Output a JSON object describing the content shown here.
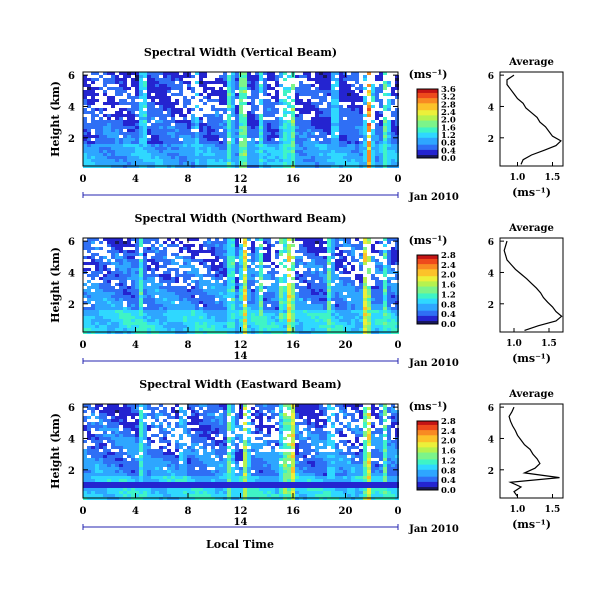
{
  "figure": {
    "xlabel": "Local Time",
    "date_label": "Jan 2010",
    "x_ticks": [
      "0",
      "4",
      "8",
      "12",
      "16",
      "20",
      "0"
    ],
    "day_marker": "14",
    "y_label": "Height (km)",
    "y_ticks": [
      "6",
      "4",
      "2"
    ],
    "units_label": "(ms⁻¹)",
    "profile_title": "Average",
    "colormap": [
      "#18185a",
      "#2424d0",
      "#2f6ff5",
      "#2ea6ff",
      "#2fd8ff",
      "#3ff4c6",
      "#7cf48a",
      "#b6f24f",
      "#ecf03a",
      "#fcc22a",
      "#f88a23",
      "#ee4a1c",
      "#c41515"
    ]
  },
  "chart_data": [
    {
      "type": "heatmap",
      "title": "Spectral Width (Vertical Beam)",
      "xlabel": "Local Time",
      "ylabel": "Height (km)",
      "xlim": [
        0,
        24
      ],
      "ylim": [
        0.2,
        6.2
      ],
      "colorbar": {
        "ticks": [
          "3.6",
          "3.2",
          "2.8",
          "2.4",
          "2.0",
          "1.6",
          "1.2",
          "0.8",
          "0.4",
          "0.0"
        ],
        "max": 3.6
      },
      "bursts": [
        {
          "time": 4.6,
          "value": 1.9
        },
        {
          "time": 8.6,
          "value": 1.6
        },
        {
          "time": 11.2,
          "value": 2.0
        },
        {
          "time": 12.2,
          "value": 2.8
        },
        {
          "time": 13.6,
          "value": 1.6
        },
        {
          "time": 15.3,
          "value": 2.1
        },
        {
          "time": 15.9,
          "value": 2.6
        },
        {
          "time": 19.2,
          "value": 1.8
        },
        {
          "time": 21.8,
          "value": 3.4
        },
        {
          "time": 23.1,
          "value": 2.2
        }
      ],
      "profile": {
        "title": "Average",
        "xlabel": "(ms⁻¹)",
        "xlim": [
          0.75,
          1.65
        ],
        "x_ticks": [
          "1.0",
          "1.5"
        ],
        "heights": [
          0.3,
          0.6,
          0.9,
          1.2,
          1.5,
          1.8,
          2.1,
          2.4,
          2.7,
          3.0,
          3.3,
          3.6,
          3.9,
          4.2,
          4.5,
          4.8,
          5.1,
          5.4,
          5.7,
          6.0
        ],
        "values": [
          1.05,
          1.08,
          1.2,
          1.38,
          1.55,
          1.62,
          1.5,
          1.45,
          1.4,
          1.32,
          1.28,
          1.2,
          1.12,
          1.08,
          1.0,
          0.95,
          0.9,
          0.85,
          0.85,
          0.95
        ]
      }
    },
    {
      "type": "heatmap",
      "title": "Spectral Width (Northward Beam)",
      "xlabel": "Local Time",
      "ylabel": "Height (km)",
      "xlim": [
        0,
        24
      ],
      "ylim": [
        0.2,
        6.2
      ],
      "colorbar": {
        "ticks": [
          "2.8",
          "2.4",
          "2.0",
          "1.6",
          "1.2",
          "0.8",
          "0.4",
          "0.0"
        ],
        "max": 2.8
      },
      "bursts": [
        {
          "time": 4.4,
          "value": 1.4
        },
        {
          "time": 11.3,
          "value": 1.8
        },
        {
          "time": 12.3,
          "value": 2.3
        },
        {
          "time": 13.5,
          "value": 1.6
        },
        {
          "time": 15.2,
          "value": 1.8
        },
        {
          "time": 15.8,
          "value": 2.6
        },
        {
          "time": 18.8,
          "value": 1.6
        },
        {
          "time": 21.6,
          "value": 2.7
        },
        {
          "time": 23.0,
          "value": 1.4
        }
      ],
      "profile": {
        "title": "Average",
        "xlabel": "(ms⁻¹)",
        "xlim": [
          0.8,
          1.7
        ],
        "x_ticks": [
          "1.0",
          "1.5"
        ],
        "heights": [
          0.3,
          0.6,
          0.9,
          1.2,
          1.5,
          1.8,
          2.1,
          2.4,
          2.7,
          3.0,
          3.3,
          3.6,
          3.9,
          4.2,
          4.5,
          4.8,
          5.1,
          5.4,
          5.7,
          6.0
        ],
        "values": [
          1.15,
          1.35,
          1.6,
          1.68,
          1.6,
          1.55,
          1.48,
          1.42,
          1.38,
          1.32,
          1.25,
          1.18,
          1.1,
          1.02,
          0.96,
          0.9,
          0.88,
          0.86,
          0.88,
          0.9
        ]
      }
    },
    {
      "type": "heatmap",
      "title": "Spectral Width (Eastward Beam)",
      "xlabel": "Local Time",
      "ylabel": "Height (km)",
      "xlim": [
        0,
        24
      ],
      "ylim": [
        0.2,
        6.2
      ],
      "colorbar": {
        "ticks": [
          "2.8",
          "2.4",
          "2.0",
          "1.6",
          "1.2",
          "0.8",
          "0.4",
          "0.0"
        ],
        "max": 2.8
      },
      "bursts": [
        {
          "time": 4.5,
          "value": 1.5
        },
        {
          "time": 7.6,
          "value": 1.3
        },
        {
          "time": 11.2,
          "value": 1.8
        },
        {
          "time": 12.4,
          "value": 2.1
        },
        {
          "time": 15.3,
          "value": 1.9
        },
        {
          "time": 15.9,
          "value": 2.6
        },
        {
          "time": 18.9,
          "value": 1.5
        },
        {
          "time": 21.7,
          "value": 2.7
        },
        {
          "time": 23.0,
          "value": 1.5
        }
      ],
      "profile": {
        "title": "Average",
        "xlabel": "(ms⁻¹)",
        "xlim": [
          0.75,
          1.65
        ],
        "x_ticks": [
          "1.0",
          "1.5"
        ],
        "heights": [
          0.3,
          0.6,
          0.9,
          1.2,
          1.5,
          1.8,
          2.1,
          2.4,
          2.7,
          3.0,
          3.3,
          3.6,
          3.9,
          4.2,
          4.5,
          4.8,
          5.1,
          5.4,
          5.7,
          6.0
        ],
        "values": [
          1.0,
          0.95,
          1.05,
          0.9,
          1.6,
          1.1,
          1.25,
          1.32,
          1.28,
          1.22,
          1.18,
          1.1,
          1.05,
          1.0,
          0.97,
          0.93,
          0.9,
          0.88,
          0.92,
          0.95
        ]
      }
    }
  ]
}
